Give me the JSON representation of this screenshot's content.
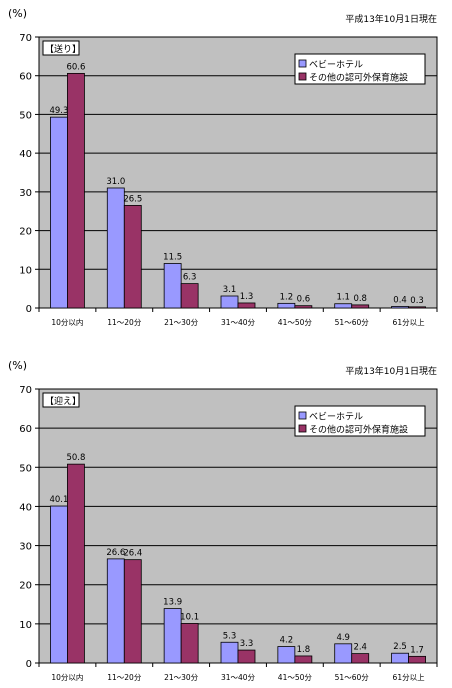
{
  "chart_data": [
    {
      "type": "bar",
      "ylabel": "(%)",
      "date_note": "平成13年10月1日現在",
      "panel_label": "【送り】",
      "ylim": [
        0,
        70
      ],
      "yticks": [
        "0",
        "10",
        "20",
        "30",
        "40",
        "50",
        "60",
        "70"
      ],
      "grid": true,
      "legend_position": "top-right",
      "categories": [
        "10分以内",
        "11～20分",
        "21～30分",
        "31～40分",
        "41～50分",
        "51～60分",
        "61分以上"
      ],
      "series": [
        {
          "name": "ベビーホテル",
          "color": "#9999ff",
          "values": [
            49.3,
            31.0,
            11.5,
            3.1,
            1.2,
            1.1,
            0.4
          ],
          "labels": [
            "49.3",
            "31.0",
            "11.5",
            "3.1",
            "1.2",
            "1.1",
            "0.4"
          ]
        },
        {
          "name": "その他の認可外保育施設",
          "color": "#993366",
          "values": [
            60.6,
            26.5,
            6.3,
            1.3,
            0.6,
            0.8,
            0.3
          ],
          "labels": [
            "60.6",
            "26.5",
            "6.3",
            "1.3",
            "0.6",
            "0.8",
            "0.3"
          ]
        }
      ]
    },
    {
      "type": "bar",
      "ylabel": "(%)",
      "date_note": "平成13年10月1日現在",
      "panel_label": "【迎え】",
      "ylim": [
        0,
        70
      ],
      "yticks": [
        "0",
        "10",
        "20",
        "30",
        "40",
        "50",
        "60",
        "70"
      ],
      "grid": true,
      "legend_position": "top-right",
      "categories": [
        "10分以内",
        "11～20分",
        "21～30分",
        "31～40分",
        "41～50分",
        "51～60分",
        "61分以上"
      ],
      "series": [
        {
          "name": "ベビーホテル",
          "color": "#9999ff",
          "values": [
            40.1,
            26.6,
            13.9,
            5.3,
            4.2,
            4.9,
            2.5
          ],
          "labels": [
            "40.1",
            "26.6",
            "13.9",
            "5.3",
            "4.2",
            "4.9",
            "2.5"
          ]
        },
        {
          "name": "その他の認可外保育施設",
          "color": "#993366",
          "values": [
            50.8,
            26.4,
            10.1,
            3.3,
            1.8,
            2.4,
            1.7
          ],
          "labels": [
            "50.8",
            "26.4",
            "10.1",
            "3.3",
            "1.8",
            "2.4",
            "1.7"
          ]
        }
      ]
    }
  ],
  "colors": {
    "plot_bg": "#c0c0c0",
    "gridline": "#000000",
    "axis": "#000000"
  }
}
